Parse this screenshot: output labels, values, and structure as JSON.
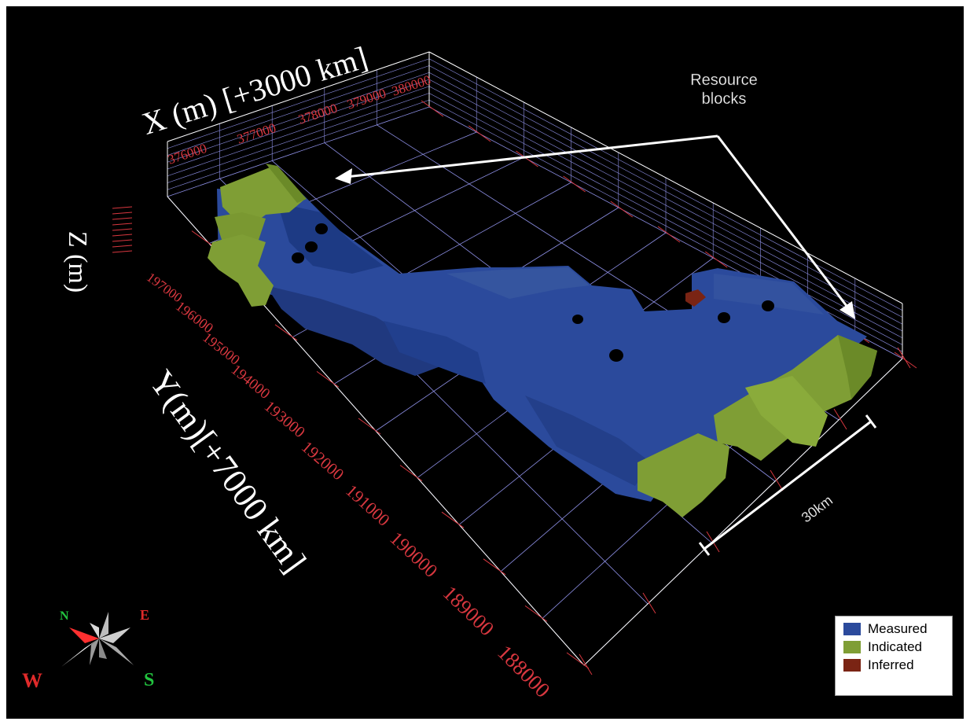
{
  "axes": {
    "x_title": "X (m) [+3000 km]",
    "y_title": "Y(m)[+7000 km]",
    "z_title": "Z (m)",
    "x_ticks": [
      "376000",
      "377000",
      "378000",
      "379000",
      "380000"
    ],
    "y_ticks": [
      "197000",
      "196000",
      "195000",
      "194000",
      "193000",
      "192000",
      "191000",
      "190000",
      "189000",
      "188000"
    ]
  },
  "annotation": {
    "line1": "Resource",
    "line2": "blocks"
  },
  "scale_bar": {
    "label": "30km"
  },
  "compass": {
    "n": "N",
    "e": "E",
    "s": "S",
    "w": "W"
  },
  "legend": {
    "items": [
      {
        "label": "Measured",
        "color": "#2b4a9c"
      },
      {
        "label": "Indicated",
        "color": "#7f9e35"
      },
      {
        "label": "Inferred",
        "color": "#7a2414"
      }
    ]
  },
  "colors": {
    "measured": "#2b4a9c",
    "indicated": "#7f9e35",
    "inferred": "#7a2414",
    "tick_label": "#d8373f",
    "grid": "#8f91e8"
  }
}
